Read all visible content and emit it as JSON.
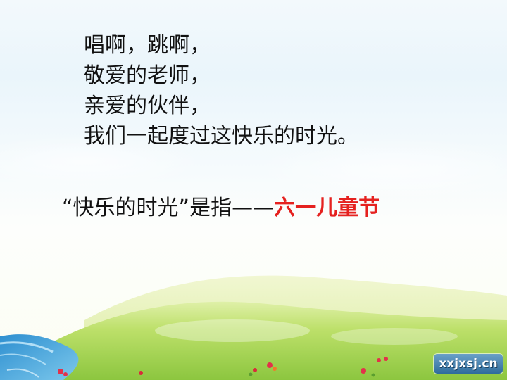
{
  "poem": {
    "lines": [
      "唱啊，跳啊，",
      "敬爱的老师，",
      "亲爱的伙伴，",
      "我们一起度过这快乐的时光。"
    ]
  },
  "question": {
    "prefix": "“快乐的时光”是指——",
    "answer": "六一儿童节"
  },
  "watermark": {
    "text": "xxjxsj.cn"
  },
  "colors": {
    "answer": "#e5211f",
    "text": "#111111",
    "grass": "#a6d24a",
    "water": "#3aa3d8"
  }
}
